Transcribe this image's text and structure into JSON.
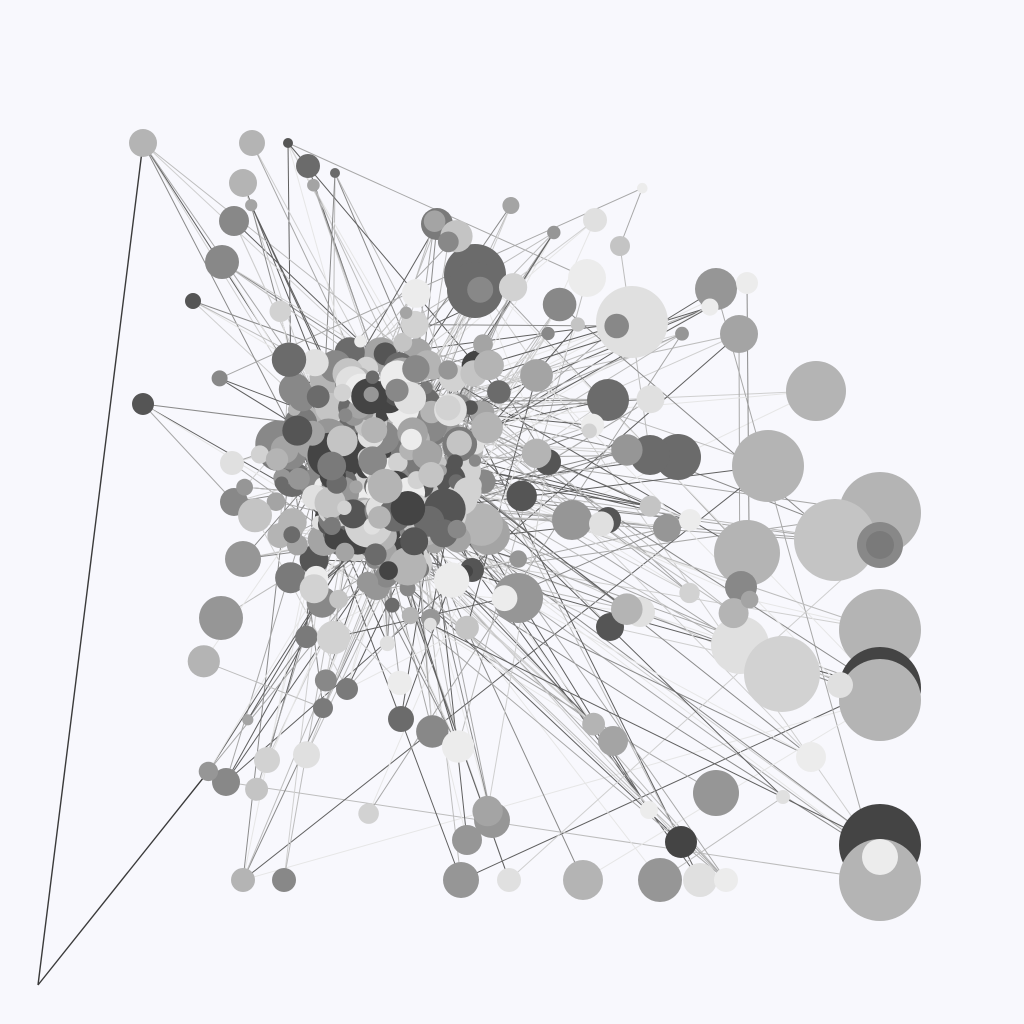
{
  "graph": {
    "background_color": "#f8f8fd",
    "edge_colors": [
      "#e6e6e6",
      "#cfcfcf",
      "#bdbdbd",
      "#a8a8a8",
      "#8a8a8a",
      "#5f5f5f",
      "#3a3a3a"
    ],
    "node_colors": [
      "#ececec",
      "#e0e0e0",
      "#d2d2d2",
      "#c4c4c4",
      "#b4b4b4",
      "#a4a4a4",
      "#969696",
      "#888888",
      "#7a7a7a",
      "#6b6b6b",
      "#555555",
      "#444444"
    ],
    "label_text": ""
  }
}
